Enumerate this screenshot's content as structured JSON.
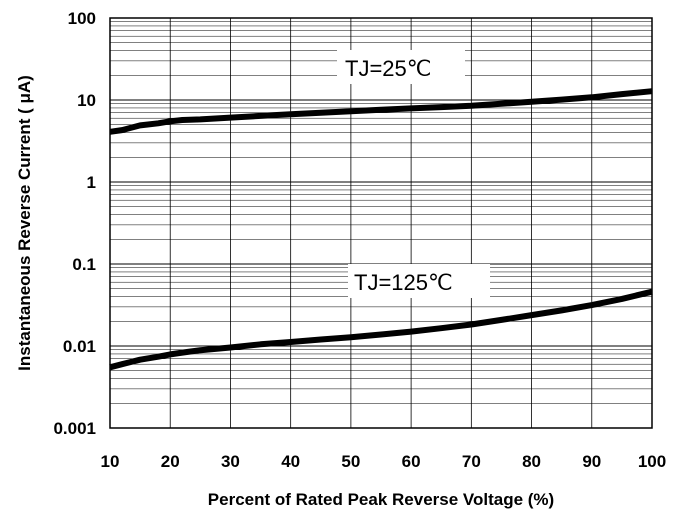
{
  "chart_data": {
    "type": "line",
    "title": "",
    "xlabel": "Percent of Rated Peak Reverse Voltage (%)",
    "ylabel": "Instantaneous Reverse Current ( μA)",
    "xlim": [
      10,
      100
    ],
    "ylim": [
      0.001,
      100
    ],
    "yscale": "log",
    "grid": true,
    "x_ticks": [
      "10",
      "20",
      "30",
      "40",
      "50",
      "60",
      "70",
      "80",
      "90",
      "100"
    ],
    "y_ticks": [
      "0.001",
      "0.01",
      "0.1",
      "1",
      "10",
      "100"
    ],
    "series": [
      {
        "name": "TJ=25℃",
        "x": [
          10,
          12,
          15,
          18,
          20,
          22,
          25,
          30,
          35,
          40,
          45,
          50,
          55,
          60,
          65,
          70,
          75,
          80,
          85,
          90,
          95,
          100
        ],
        "y": [
          4.1,
          4.3,
          4.9,
          5.2,
          5.5,
          5.7,
          5.8,
          6.1,
          6.4,
          6.7,
          7.0,
          7.3,
          7.6,
          7.9,
          8.2,
          8.5,
          9.0,
          9.5,
          10.1,
          10.8,
          11.8,
          12.8
        ]
      },
      {
        "name": "TJ=125℃",
        "x": [
          10,
          12,
          15,
          18,
          20,
          22,
          25,
          30,
          35,
          40,
          45,
          50,
          55,
          60,
          65,
          70,
          75,
          80,
          85,
          90,
          95,
          100
        ],
        "y": [
          0.0055,
          0.006,
          0.0068,
          0.0074,
          0.0079,
          0.0083,
          0.0089,
          0.0096,
          0.0105,
          0.0112,
          0.012,
          0.0128,
          0.0138,
          0.015,
          0.0165,
          0.0183,
          0.0208,
          0.0238,
          0.0272,
          0.0315,
          0.0375,
          0.046
        ]
      }
    ]
  },
  "annotations": {
    "tj25_label": "TJ=25℃",
    "tj125_label": "TJ=125℃"
  }
}
